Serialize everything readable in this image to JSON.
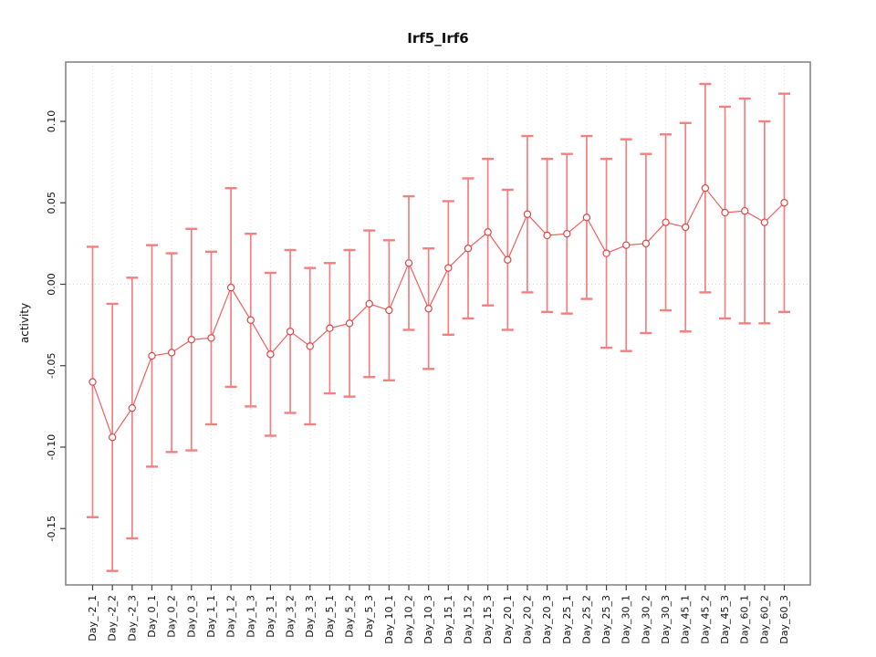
{
  "title": "Irf5_Irf6",
  "ylabel": "activity",
  "xlabel": "",
  "colors": {
    "error_bar": "#f28080",
    "series_line": "#ef5f5f",
    "marker_stroke": "#e04545",
    "marker_fill": "#ffffff",
    "grid": "#e0e0e0",
    "zero_line": "#d6d6d6",
    "box": "#878787",
    "tick": "#404040",
    "text": "#111111",
    "background": "#ffffff"
  },
  "chart_data": {
    "type": "line",
    "subtype": "points-with-error-bars",
    "title": "Irf5_Irf6",
    "xlabel": "",
    "ylabel": "activity",
    "legend": "none",
    "grid": "vertical dotted gridline at every category; horizontal dotted line at y=0",
    "ylim": [
      -0.185,
      0.136
    ],
    "ytick_labels": [
      "0.10",
      "0.05",
      "0.00",
      "-0.05",
      "-0.10",
      "-0.15"
    ],
    "ytick_values": [
      0.1,
      0.05,
      0.0,
      -0.05,
      -0.1,
      -0.15
    ],
    "categories": [
      "Day_-2_1",
      "Day_-2_2",
      "Day_-2_3",
      "Day_0_1",
      "Day_0_2",
      "Day_0_3",
      "Day_1_1",
      "Day_1_2",
      "Day_1_3",
      "Day_3_1",
      "Day_3_2",
      "Day_3_3",
      "Day_5_1",
      "Day_5_2",
      "Day_5_3",
      "Day_10_1",
      "Day_10_2",
      "Day_10_3",
      "Day_15_1",
      "Day_15_2",
      "Day_15_3",
      "Day_20_1",
      "Day_20_2",
      "Day_20_3",
      "Day_25_1",
      "Day_25_2",
      "Day_25_3",
      "Day_30_1",
      "Day_30_2",
      "Day_30_3",
      "Day_45_1",
      "Day_45_2",
      "Day_45_3",
      "Day_60_1",
      "Day_60_2",
      "Day_60_3"
    ],
    "series": [
      {
        "name": "activity",
        "values": [
          -0.06,
          -0.094,
          -0.076,
          -0.044,
          -0.042,
          -0.034,
          -0.033,
          -0.002,
          -0.022,
          -0.043,
          -0.029,
          -0.038,
          -0.027,
          -0.024,
          -0.012,
          -0.016,
          0.013,
          -0.015,
          0.01,
          0.022,
          0.032,
          0.015,
          0.043,
          0.03,
          0.031,
          0.041,
          0.019,
          0.024,
          0.025,
          0.038,
          0.035,
          0.059,
          0.044,
          0.045,
          0.038,
          0.05
        ],
        "upper": [
          0.023,
          -0.012,
          0.004,
          0.024,
          0.019,
          0.034,
          0.02,
          0.059,
          0.031,
          0.007,
          0.021,
          0.01,
          0.013,
          0.021,
          0.033,
          0.027,
          0.054,
          0.022,
          0.051,
          0.065,
          0.077,
          0.058,
          0.091,
          0.077,
          0.08,
          0.091,
          0.077,
          0.089,
          0.08,
          0.092,
          0.099,
          0.123,
          0.109,
          0.114,
          0.1,
          0.117
        ],
        "lower": [
          -0.143,
          -0.176,
          -0.156,
          -0.112,
          -0.103,
          -0.102,
          -0.086,
          -0.063,
          -0.075,
          -0.093,
          -0.079,
          -0.086,
          -0.067,
          -0.069,
          -0.057,
          -0.059,
          -0.028,
          -0.052,
          -0.031,
          -0.021,
          -0.013,
          -0.028,
          -0.005,
          -0.017,
          -0.018,
          -0.009,
          -0.039,
          -0.041,
          -0.03,
          -0.016,
          -0.029,
          -0.005,
          -0.021,
          -0.024,
          -0.024,
          -0.017
        ]
      }
    ]
  }
}
